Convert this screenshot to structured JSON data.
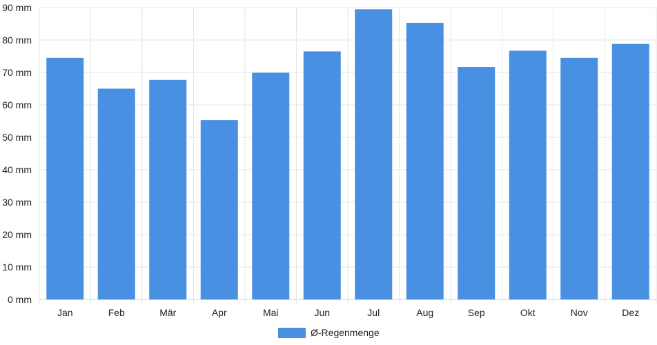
{
  "chart_data": {
    "type": "bar",
    "categories": [
      "Jan",
      "Feb",
      "Mär",
      "Apr",
      "Mai",
      "Jun",
      "Jul",
      "Aug",
      "Sep",
      "Okt",
      "Nov",
      "Dez"
    ],
    "series": [
      {
        "name": "Ø-Regenmenge",
        "values": [
          74.5,
          65,
          67.7,
          55.3,
          69.9,
          76.5,
          89.5,
          85.3,
          71.7,
          76.7,
          74.5,
          78.8
        ],
        "color": "#4a90e2"
      }
    ],
    "ylim": [
      0,
      90
    ],
    "yticks": [
      "0 mm",
      "10 mm",
      "20 mm",
      "30 mm",
      "40 mm",
      "50 mm",
      "60 mm",
      "70 mm",
      "80 mm",
      "90 mm"
    ],
    "grid": true,
    "legend_position": "bottom-center"
  }
}
